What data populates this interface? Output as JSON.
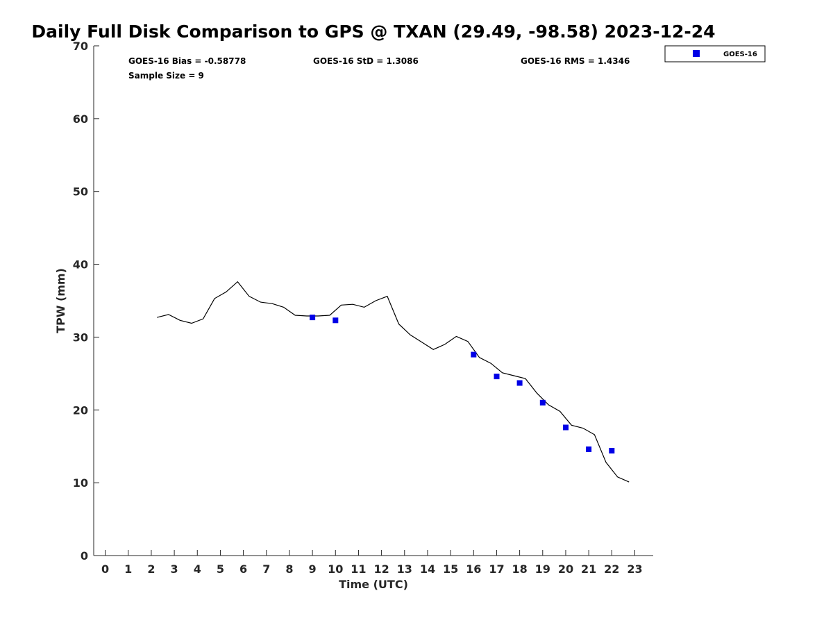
{
  "chart_data": {
    "type": "line",
    "title": "Daily Full Disk Comparison to GPS @ TXAN (29.49, -98.58) 2023-12-24",
    "xlabel": "Time (UTC)",
    "ylabel": "TPW (mm)",
    "xlim": [
      -0.5,
      23.8
    ],
    "ylim": [
      0,
      70
    ],
    "xticks": [
      0,
      1,
      2,
      3,
      4,
      5,
      6,
      7,
      8,
      9,
      10,
      11,
      12,
      13,
      14,
      15,
      16,
      17,
      18,
      19,
      20,
      21,
      22,
      23
    ],
    "yticks": [
      0,
      10,
      20,
      30,
      40,
      50,
      60,
      70
    ],
    "grid": false,
    "legend_position": "top-right",
    "stats": {
      "bias": "GOES-16 Bias = -0.58778",
      "std": "GOES-16 StD = 1.3086",
      "rms": "GOES-16 RMS = 1.4346",
      "sample": "Sample Size = 9"
    },
    "series": [
      {
        "color": "#000000",
        "style": "line",
        "x": [
          2.25,
          2.75,
          3.25,
          3.75,
          4.25,
          4.75,
          5.25,
          5.75,
          6.25,
          6.75,
          7.25,
          7.75,
          8.25,
          8.75,
          9.25,
          9.75,
          10.25,
          10.75,
          11.25,
          11.75,
          12.25,
          12.75,
          13.25,
          13.75,
          14.25,
          14.75,
          15.25,
          15.75,
          16.25,
          16.75,
          17.25,
          17.75,
          18.25,
          18.75,
          19.25,
          19.75,
          20.25,
          20.75,
          21.25,
          21.75,
          22.25,
          22.75
        ],
        "y": [
          32.7,
          33.1,
          32.3,
          31.9,
          32.5,
          35.3,
          36.2,
          37.6,
          35.6,
          34.8,
          34.6,
          34.1,
          33.0,
          32.9,
          32.9,
          33.0,
          34.4,
          34.5,
          34.1,
          35.0,
          35.6,
          31.8,
          30.3,
          29.3,
          28.3,
          29.0,
          30.1,
          29.4,
          27.2,
          26.4,
          25.1,
          24.7,
          24.3,
          22.3,
          20.7,
          19.8,
          17.9,
          17.5,
          16.6,
          12.8,
          10.8,
          10.1
        ]
      },
      {
        "name": "GOES-16",
        "color": "#0000e6",
        "style": "markers",
        "x": [
          9,
          10,
          16,
          17,
          18,
          19,
          20,
          21,
          22
        ],
        "y": [
          32.7,
          32.3,
          27.6,
          24.6,
          23.7,
          21.0,
          17.6,
          14.6,
          14.4
        ]
      }
    ]
  }
}
